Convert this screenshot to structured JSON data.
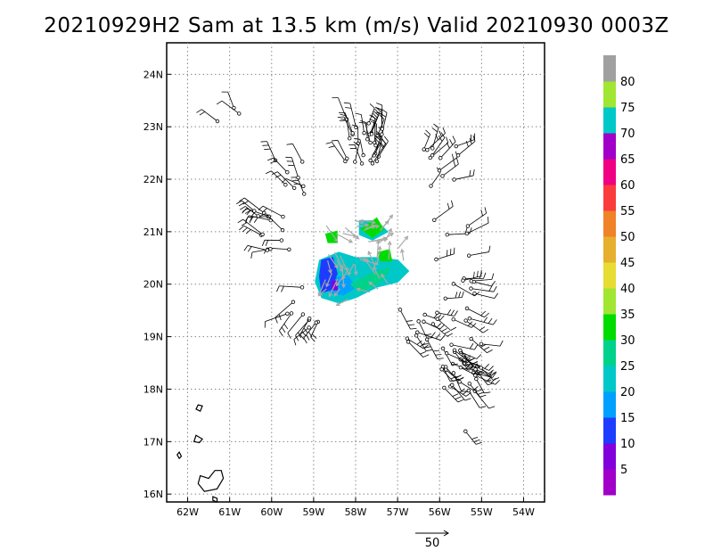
{
  "title": "20210929H2 Sam at 13.5 km (m/s) Valid 20210930 0003Z",
  "chart_data": {
    "type": "vector-field",
    "title": "20210929H2 Sam at 13.5 km (m/s) Valid 20210930 0003Z",
    "xlim": [
      -62.5,
      -53.5
    ],
    "ylim": [
      15.85,
      24.6
    ],
    "x_ticks": [
      {
        "value": -62,
        "label": "62W"
      },
      {
        "value": -61,
        "label": "61W"
      },
      {
        "value": -60,
        "label": "60W"
      },
      {
        "value": -59,
        "label": "59W"
      },
      {
        "value": -58,
        "label": "58W"
      },
      {
        "value": -57,
        "label": "57W"
      },
      {
        "value": -56,
        "label": "56W"
      },
      {
        "value": -55,
        "label": "55W"
      },
      {
        "value": -54,
        "label": "54W"
      }
    ],
    "y_ticks": [
      {
        "value": 16,
        "label": "16N"
      },
      {
        "value": 17,
        "label": "17N"
      },
      {
        "value": 18,
        "label": "18N"
      },
      {
        "value": 19,
        "label": "19N"
      },
      {
        "value": 20,
        "label": "20N"
      },
      {
        "value": 21,
        "label": "21N"
      },
      {
        "value": 22,
        "label": "22N"
      },
      {
        "value": 23,
        "label": "23N"
      },
      {
        "value": 24,
        "label": "24N"
      }
    ],
    "grid": true,
    "colorbar": {
      "labels": [
        "5",
        "10",
        "15",
        "20",
        "25",
        "30",
        "35",
        "40",
        "45",
        "50",
        "55",
        "60",
        "65",
        "70",
        "75",
        "80"
      ],
      "colors": [
        "#a000c8",
        "#8200dc",
        "#1e3cff",
        "#00a0ff",
        "#00c8c8",
        "#00d28c",
        "#00dc00",
        "#a0e632",
        "#e6dc32",
        "#e6af2d",
        "#f08228",
        "#fa3c3c",
        "#f00082",
        "#a000c8",
        "#00c8c8",
        "#a0e632",
        "#a0a0a0"
      ]
    },
    "reference_vector": {
      "label": "50",
      "speed": 50
    },
    "colored_patch_polygons": [
      {
        "color": "#00c8c8",
        "points": [
          [
            -58.85,
            20.45
          ],
          [
            -58.4,
            20.6
          ],
          [
            -58.0,
            20.5
          ],
          [
            -57.5,
            20.5
          ],
          [
            -57.0,
            20.45
          ],
          [
            -56.75,
            20.25
          ],
          [
            -57.0,
            20.05
          ],
          [
            -57.5,
            19.95
          ],
          [
            -58.0,
            19.75
          ],
          [
            -58.4,
            19.65
          ],
          [
            -58.8,
            19.75
          ],
          [
            -58.95,
            20.05
          ]
        ]
      },
      {
        "color": "#00c8c8",
        "points": [
          [
            -57.9,
            21.2
          ],
          [
            -57.5,
            21.2
          ],
          [
            -57.25,
            21.0
          ],
          [
            -57.6,
            20.85
          ],
          [
            -57.9,
            20.95
          ]
        ]
      },
      {
        "color": "#00a0ff",
        "points": [
          [
            -58.6,
            20.1
          ],
          [
            -58.2,
            20.15
          ],
          [
            -58.0,
            19.95
          ],
          [
            -58.3,
            19.8
          ],
          [
            -58.6,
            19.85
          ]
        ]
      },
      {
        "color": "#00d28c",
        "points": [
          [
            -58.1,
            20.0
          ],
          [
            -57.6,
            20.2
          ],
          [
            -57.2,
            20.3
          ],
          [
            -57.4,
            20.05
          ],
          [
            -57.9,
            19.85
          ]
        ]
      },
      {
        "color": "#00dc00",
        "points": [
          [
            -57.85,
            21.05
          ],
          [
            -57.5,
            21.25
          ],
          [
            -57.35,
            21.05
          ],
          [
            -57.6,
            20.9
          ]
        ]
      },
      {
        "color": "#00dc00",
        "points": [
          [
            -57.45,
            20.6
          ],
          [
            -57.2,
            20.65
          ],
          [
            -57.15,
            20.45
          ],
          [
            -57.4,
            20.45
          ]
        ]
      },
      {
        "color": "#00dc00",
        "points": [
          [
            -58.7,
            20.95
          ],
          [
            -58.45,
            21.0
          ],
          [
            -58.45,
            20.8
          ],
          [
            -58.65,
            20.8
          ]
        ]
      },
      {
        "color": "#1e3cff",
        "points": [
          [
            -58.8,
            20.45
          ],
          [
            -58.55,
            20.5
          ],
          [
            -58.45,
            20.2
          ],
          [
            -58.6,
            19.9
          ],
          [
            -58.8,
            19.85
          ],
          [
            -58.85,
            20.15
          ]
        ]
      },
      {
        "color": "#8200dc",
        "points": [
          [
            -58.55,
            20.05
          ],
          [
            -58.45,
            20.05
          ],
          [
            -58.45,
            19.9
          ],
          [
            -58.55,
            19.9
          ]
        ]
      }
    ],
    "vector_clusters": [
      {
        "center": [
          -56.0,
          22.2
        ],
        "count": 12
      },
      {
        "center": [
          -57.8,
          22.7
        ],
        "count": 30
      },
      {
        "center": [
          -59.5,
          22.0
        ],
        "count": 8
      },
      {
        "center": [
          -60.0,
          21.0
        ],
        "count": 14
      },
      {
        "center": [
          -59.2,
          19.6
        ],
        "count": 10
      },
      {
        "center": [
          -56.5,
          19.1
        ],
        "count": 12
      },
      {
        "center": [
          -55.6,
          19.7
        ],
        "count": 12
      },
      {
        "center": [
          -55.7,
          20.8
        ],
        "count": 6
      },
      {
        "center": [
          -55.5,
          18.4
        ],
        "count": 24
      },
      {
        "center": [
          -55.4,
          18.6
        ],
        "count": 10
      },
      {
        "center": [
          -61.0,
          23.45
        ],
        "count": 3
      },
      {
        "center": [
          -55.0,
          17.4
        ],
        "count": 1
      }
    ],
    "coastlines": [
      [
        [
          -61.75,
          17.7
        ],
        [
          -61.65,
          17.68
        ],
        [
          -61.7,
          17.58
        ],
        [
          -61.8,
          17.62
        ]
      ],
      [
        [
          -61.8,
          17.12
        ],
        [
          -61.65,
          17.05
        ],
        [
          -61.72,
          16.98
        ],
        [
          -61.85,
          17.0
        ]
      ],
      [
        [
          -62.2,
          16.8
        ],
        [
          -62.15,
          16.72
        ],
        [
          -62.2,
          16.68
        ],
        [
          -62.25,
          16.75
        ]
      ],
      [
        [
          -61.7,
          16.35
        ],
        [
          -61.5,
          16.3
        ],
        [
          -61.35,
          16.45
        ],
        [
          -61.2,
          16.45
        ],
        [
          -61.15,
          16.3
        ],
        [
          -61.3,
          16.1
        ],
        [
          -61.6,
          16.05
        ],
        [
          -61.75,
          16.2
        ]
      ],
      [
        [
          -61.4,
          15.95
        ],
        [
          -61.3,
          15.92
        ],
        [
          -61.3,
          15.85
        ],
        [
          -61.4,
          15.88
        ]
      ]
    ]
  }
}
